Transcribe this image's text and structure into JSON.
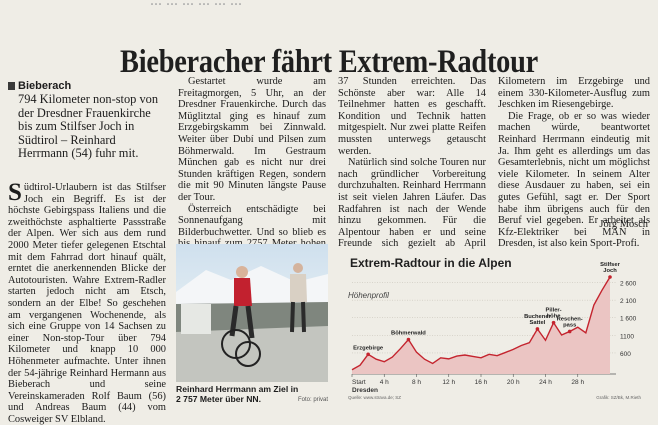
{
  "cutoff_text": "... ... ... ... ... ...",
  "headline": "Bieberacher fährt Extrem-Radtour",
  "dateline": "Bieberach",
  "lead": "794 Kilometer non-stop von der Dresdner Frauenkirche bis zum Stilfser Joch in Südtirol – Reinhard Herrmann (54) fuhr mit.",
  "columns": {
    "c1": "üdtirol-Urlaubern ist das Stilfser Joch ein Begriff. Es ist der höchste Gebirgspass Italiens und die zweithöchste asphaltierte Passstraße der Alpen. Wer sich aus dem rund 2000 Meter tiefer gelegenen Etschtal mit dem Fahrrad dort hinauf quält, erntet die anerkennenden Blicke der Autotouristen. Wahre Extrem-Radler starten jedoch nicht am Etsch, sondern an der Elbe! So geschehen am vergangenen Wochenende, als sich eine Gruppe von 14 Sachsen zu einer Non-stop-Tour über 794 Kilometer und knapp 10 000 Höhenmeter aufmachte. Unter ihnen der 54-jährige Reinhard Hermann aus Bieberach und seine Vereinskameraden Rolf Baum (56) und Andreas Baum (44) vom Cosweiger SV Elbland.",
    "c1_dropcap": "S",
    "c2_p1": "Gestartet wurde am Freitagmorgen, 5 Uhr, an der Dresdner Frauenkirche. Durch das Müglitztal ging es hinauf zum Erzgebirgskamm bei Zinnwald. Weiter über Dubí und Pilsen zum Böhmerwald. Im Gestraum München gab es nicht nur drei Stunden kräftigen Regen, sondern die mit 90 Minuten längste Pause der Tour.",
    "c2_p2": "Österreich entschädigte bei Sonnenaufgang mit Bilderbuchwetter. Und so blieb es bis hinauf zum 2757 Meter hohen Ziel, das die Radler am Sonnabend gegen 18 Uhr nach",
    "c3_p1": "37 Stunden erreichten. Das Schönste aber war: Alle 14 Teilnehmer hatten es geschafft. Kondition und Technik hatten mitgespielt. Nur zwei platte Reifen mussten unterwegs getauscht werden.",
    "c3_p2": "Natürlich sind solche Touren nur nach gründlicher Vorbereitung durchzuhalten. Reinhard Herrmann ist seit vielen Jahren Läufer. Das Radfahren ist nach der Wende hinzu gekommen. Für die Alpentour haben er und seine Freunde sich gezielt ab April vorbereitet. Mit mehreren „Kurzstrecken\" von 200",
    "c4_p1": "Kilometern im Erzgebirge und einem 330-Kilometer-Ausflug zum Jeschken im Riesengebirge.",
    "c4_p2": "Die Frage, ob er so was wieder machen würde, beantwortet Reinhard Herrmann eindeutig mit Ja. Ihm geht es allerdings um das Gesamterlebnis, nicht um möglichst viele Kilometer. In seinem Alter diese Ausdauer zu haben, sei ein gutes Gefühl, sagt er. Der Sport habe ihm übrigens auch für den Beruf viel gegeben. Er arbeitet als Kfz-Elektriker bei MAN in Dresden, ist also kein Sport-Profi."
  },
  "signature": "Jörg Mosch",
  "photo": {
    "caption_line1": "Reinhard Herrmann am Ziel in",
    "caption_line2": "2 757 Meter über NN.",
    "credit": "Foto: privat"
  },
  "chart_data": {
    "type": "area",
    "title": "Extrem-Radtour in die Alpen",
    "subtitle": "Höhenprofil",
    "x_unit": "h",
    "x_ticks": [
      0,
      4,
      8,
      12,
      16,
      20,
      24,
      28
    ],
    "x_tick_labels": [
      "Start",
      "4 h",
      "8 h",
      "12 h",
      "16 h",
      "20 h",
      "24 h",
      "28 h"
    ],
    "x_start_label": "Dresden",
    "xlim": [
      0,
      32
    ],
    "y_ticks": [
      600,
      1100,
      1600,
      2100,
      2600
    ],
    "y_tick_labels": [
      "600",
      "1100",
      "1 600",
      "2 100",
      "2 600"
    ],
    "ylim": [
      0,
      2900
    ],
    "profile": {
      "x": [
        0,
        1,
        2,
        3,
        4,
        5,
        6,
        7,
        8,
        9,
        10,
        11,
        12,
        13,
        14,
        15,
        16,
        17,
        18,
        19,
        20,
        21,
        22,
        23,
        24,
        25,
        26,
        27,
        28,
        29,
        30,
        31,
        32
      ],
      "y": [
        120,
        250,
        560,
        420,
        350,
        480,
        720,
        980,
        620,
        420,
        300,
        460,
        430,
        510,
        540,
        500,
        460,
        560,
        520,
        610,
        700,
        810,
        890,
        1280,
        960,
        1460,
        1110,
        1210,
        1330,
        1170,
        1960,
        2380,
        2757
      ]
    },
    "annotations": [
      {
        "label": "Erzgebirge",
        "x": 2
      },
      {
        "label": "Böhmerwald",
        "x": 7
      },
      {
        "label": "Buchener Sattel",
        "x": 23
      },
      {
        "label": "Piller-höhe",
        "x": 25
      },
      {
        "label": "Reschen-pass",
        "x": 27
      },
      {
        "label": "Stilfser Joch",
        "x": 32
      }
    ],
    "credit_left": "Quelle: www.strava.de; SZ",
    "credit_right": "Grafik: SZ/Bk, M.Rieth"
  }
}
